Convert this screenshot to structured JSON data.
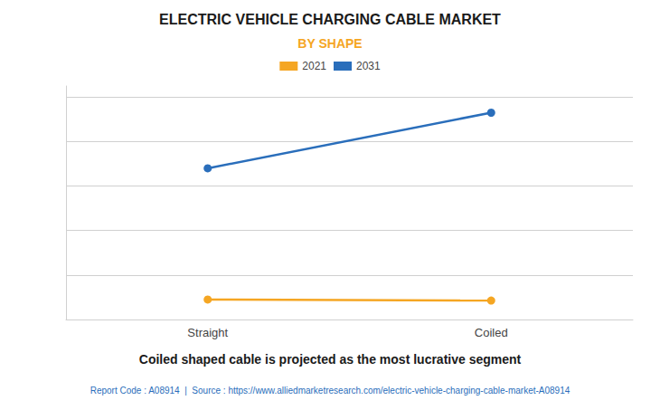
{
  "chart_data": {
    "type": "line",
    "title": "ELECTRIC VEHICLE CHARGING CABLE MARKET",
    "subtitle": "BY SHAPE",
    "categories": [
      "Straight",
      "Coiled"
    ],
    "series": [
      {
        "name": "2021",
        "color": "#F5A623",
        "values": [
          0.09,
          0.085
        ],
        "marker": "circle"
      },
      {
        "name": "2031",
        "color": "#2A6EBB",
        "values": [
          0.68,
          0.93
        ],
        "marker": "circle"
      }
    ],
    "ylim": [
      0,
      1.05
    ],
    "yticks": [
      0,
      0.2,
      0.4,
      0.6,
      0.8,
      1.0
    ],
    "tick_labels": "x",
    "grid": true,
    "legend": "top",
    "annotations": [
      "Coiled shaped cable is projected as the most lucrative segment",
      "Report Code : A08914  |  Source : https://www.alliedmarketresearch.com/electric-vehicle-charging-cable-market-A08914"
    ]
  }
}
